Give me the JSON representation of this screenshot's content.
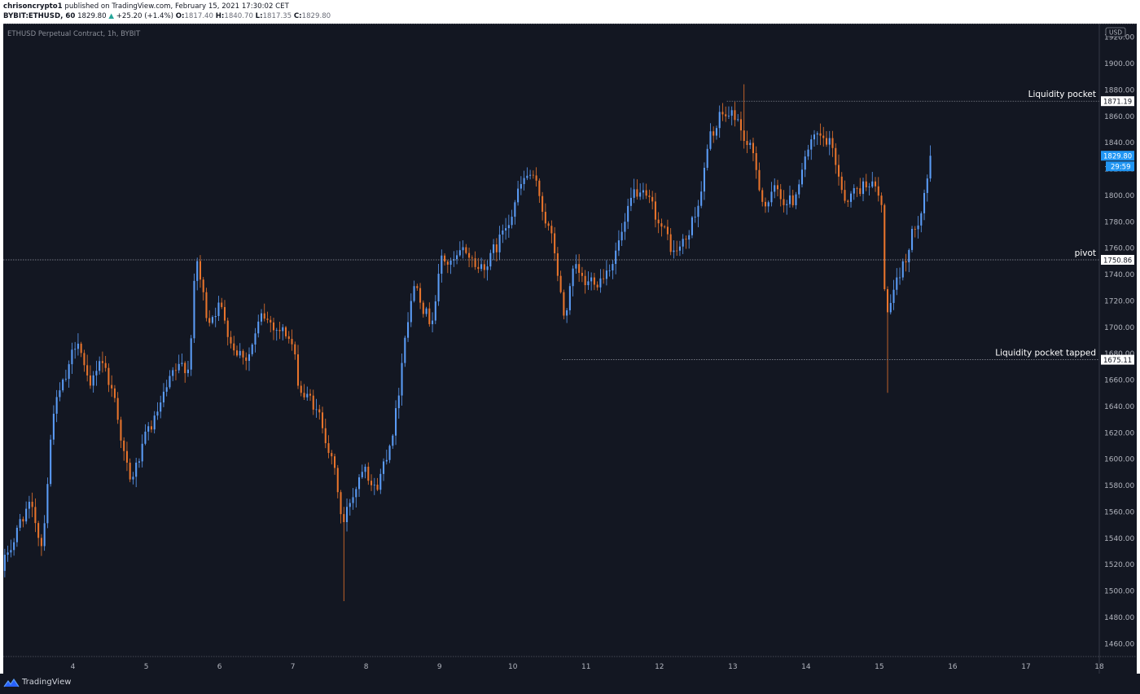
{
  "header": {
    "publisher": "chrisoncrypto1",
    "published_text": "published on TradingView.com, February 15, 2021 17:30:02 CET",
    "symbol": "BYBIT:ETHUSD, 60",
    "last": "1829.80",
    "change_arrow": "▲",
    "change": "+25.20 (+1.4%)",
    "o_label": "O:",
    "o_value": "1817.40",
    "h_label": "H:",
    "h_value": "1840.70",
    "l_label": "L:",
    "l_value": "1817.35",
    "c_label": "C:",
    "c_value": "1829.80"
  },
  "footer": {
    "brand": "TradingView",
    "logo_icon": "tradingview-logo-icon"
  },
  "chart_data": {
    "type": "candlestick",
    "legend": "ETHUSD Perpetual Contract, 1h, BYBIT",
    "currency": "USD",
    "ylim": [
      1450,
      1930
    ],
    "y_ticks": [
      1460,
      1480,
      1500,
      1520,
      1540,
      1560,
      1580,
      1600,
      1620,
      1640,
      1660,
      1680,
      1700,
      1720,
      1740,
      1760,
      1780,
      1800,
      1820,
      1840,
      1860,
      1880,
      1900,
      1920
    ],
    "y_tick_labels": [
      "1460.00",
      "1480.00",
      "1500.00",
      "1520.00",
      "1540.00",
      "1560.00",
      "1580.00",
      "1600.00",
      "1620.00",
      "1640.00",
      "1660.00",
      "1680.00",
      "1700.00",
      "1720.00",
      "1740.00",
      "1760.00",
      "1780.00",
      "1800.00",
      "1820.00",
      "1840.00",
      "1860.00",
      "1880.00",
      "1900.00",
      "1920.00"
    ],
    "x_axis_days": [
      4,
      5,
      6,
      7,
      8,
      9,
      10,
      11,
      12,
      13,
      14,
      15,
      16,
      17,
      18
    ],
    "xlim_days": [
      3.05,
      18.0
    ],
    "last_day": 15.72,
    "up_color": "#5b9cf6",
    "down_color": "#e8742c",
    "bg_color": "#131722",
    "price_path": [
      [
        3.05,
        1515
      ],
      [
        3.4,
        1565
      ],
      [
        3.6,
        1535
      ],
      [
        3.75,
        1640
      ],
      [
        3.95,
        1660
      ],
      [
        4.1,
        1695
      ],
      [
        4.25,
        1645
      ],
      [
        4.4,
        1680
      ],
      [
        4.6,
        1645
      ],
      [
        4.8,
        1580
      ],
      [
        5.0,
        1610
      ],
      [
        5.2,
        1635
      ],
      [
        5.4,
        1660
      ],
      [
        5.6,
        1670
      ],
      [
        5.7,
        1752
      ],
      [
        5.85,
        1705
      ],
      [
        6.0,
        1720
      ],
      [
        6.2,
        1690
      ],
      [
        6.4,
        1680
      ],
      [
        6.6,
        1705
      ],
      [
        6.85,
        1700
      ],
      [
        7.0,
        1690
      ],
      [
        7.1,
        1655
      ],
      [
        7.3,
        1640
      ],
      [
        7.5,
        1615
      ],
      [
        7.62,
        1580
      ],
      [
        7.7,
        1548
      ],
      [
        7.85,
        1575
      ],
      [
        8.0,
        1605
      ],
      [
        8.15,
        1578
      ],
      [
        8.3,
        1605
      ],
      [
        8.45,
        1645
      ],
      [
        8.55,
        1700
      ],
      [
        8.7,
        1740
      ],
      [
        8.9,
        1705
      ],
      [
        9.05,
        1752
      ],
      [
        9.2,
        1745
      ],
      [
        9.4,
        1755
      ],
      [
        9.55,
        1745
      ],
      [
        9.8,
        1758
      ],
      [
        10.05,
        1800
      ],
      [
        10.25,
        1815
      ],
      [
        10.5,
        1778
      ],
      [
        10.6,
        1752
      ],
      [
        10.72,
        1705
      ],
      [
        10.85,
        1740
      ],
      [
        11.0,
        1728
      ],
      [
        11.2,
        1740
      ],
      [
        11.35,
        1752
      ],
      [
        11.55,
        1775
      ],
      [
        11.7,
        1800
      ],
      [
        11.85,
        1790
      ],
      [
        12.05,
        1775
      ],
      [
        12.2,
        1755
      ],
      [
        12.4,
        1765
      ],
      [
        12.55,
        1795
      ],
      [
        12.7,
        1840
      ],
      [
        12.85,
        1858
      ],
      [
        13.05,
        1860
      ],
      [
        13.25,
        1835
      ],
      [
        13.45,
        1795
      ],
      [
        13.6,
        1800
      ],
      [
        13.85,
        1795
      ],
      [
        14.0,
        1835
      ],
      [
        14.15,
        1838
      ],
      [
        14.35,
        1835
      ],
      [
        14.55,
        1800
      ],
      [
        14.75,
        1805
      ],
      [
        14.9,
        1815
      ],
      [
        15.05,
        1790
      ],
      [
        15.1,
        1710
      ],
      [
        15.25,
        1725
      ],
      [
        15.4,
        1755
      ],
      [
        15.55,
        1785
      ],
      [
        15.72,
        1829.8
      ]
    ],
    "annotations": [
      {
        "label": "Liquidity pocket",
        "price": 1871.19,
        "price_label": "1871.19",
        "from_day": 12.92
      },
      {
        "label": "pivot",
        "price": 1750.86,
        "price_label": "1750.86",
        "from_day": 3.05
      },
      {
        "label": "Liquidity pocket tapped",
        "price": 1675.11,
        "price_label": "1675.11",
        "from_day": 10.67
      }
    ],
    "last_price_label": "1829.80",
    "countdown_label": "29:59",
    "min_wick": {
      "day": 7.7,
      "price": 1492
    },
    "max_wick": {
      "day": 13.15,
      "price": 1884
    },
    "tapped_wick": {
      "day": 15.12,
      "price": 1650
    }
  }
}
